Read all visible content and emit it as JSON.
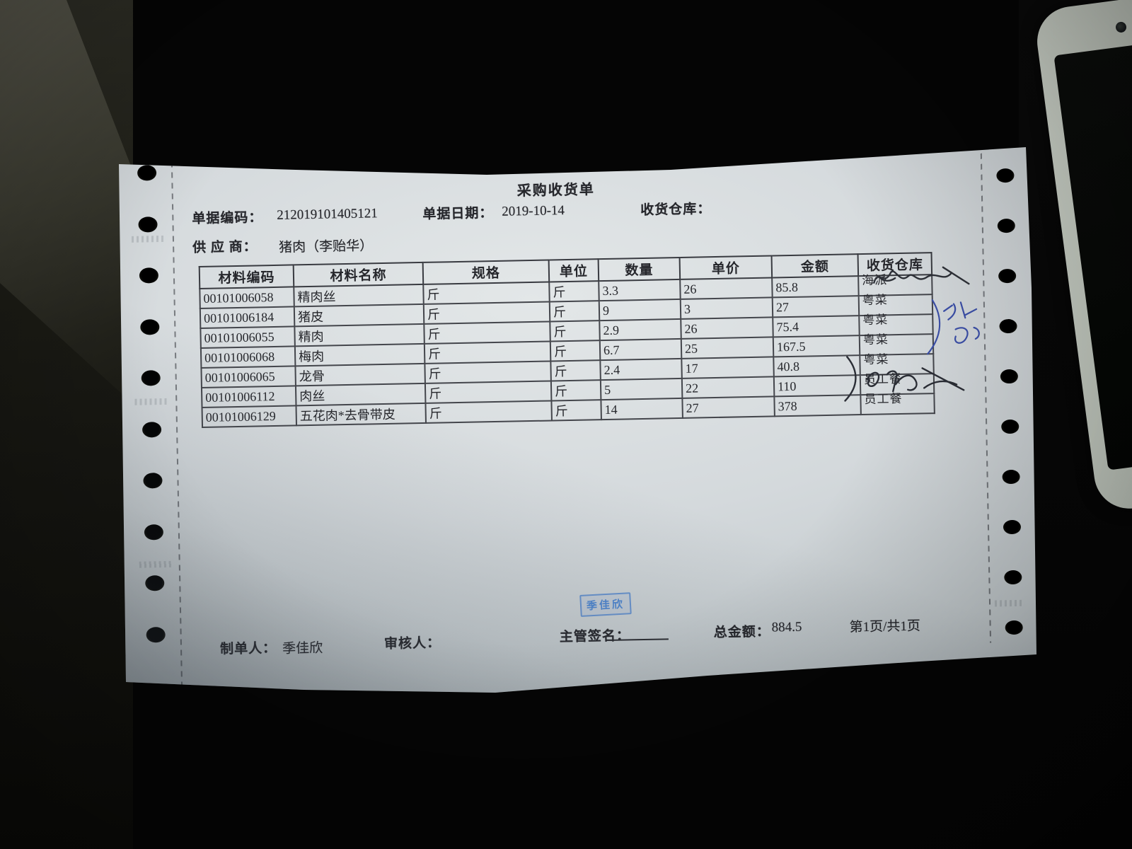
{
  "scene": {
    "background_color": "#050505",
    "paper_color": "#d4d9dc",
    "ink_color": "#26272c",
    "stamp_blue": "#4f86cf",
    "handwriting_blue": "#3c50aa",
    "handwriting_dark": "#2b2e36",
    "phone_body_color": "#c9d0c6",
    "phone_screen_color": "#070907"
  },
  "document": {
    "title": "采购收货单",
    "meta": {
      "code_label": "单据编码：",
      "code_value": "212019101405121",
      "date_label": "单据日期：",
      "date_value": "2019-10-14",
      "warehouse_label": "收货仓库：",
      "supplier_label": "供 应 商：",
      "supplier_value": "猪肉（李贻华）"
    },
    "table": {
      "headers": [
        "材料编码",
        "材料名称",
        "规格",
        "单位",
        "数量",
        "单价",
        "金额",
        "收货仓库"
      ],
      "rows": [
        {
          "code": "00101006058",
          "name": "精肉丝",
          "spec": "斤",
          "unit": "斤",
          "qty": "3.3",
          "price": "26",
          "amount": "85.8",
          "warehouse": "海派"
        },
        {
          "code": "00101006184",
          "name": "猪皮",
          "spec": "斤",
          "unit": "斤",
          "qty": "9",
          "price": "3",
          "amount": "27",
          "warehouse": "粤菜"
        },
        {
          "code": "00101006055",
          "name": "精肉",
          "spec": "斤",
          "unit": "斤",
          "qty": "2.9",
          "price": "26",
          "amount": "75.4",
          "warehouse": "粤菜"
        },
        {
          "code": "00101006068",
          "name": "梅肉",
          "spec": "斤",
          "unit": "斤",
          "qty": "6.7",
          "price": "25",
          "amount": "167.5",
          "warehouse": "粤菜"
        },
        {
          "code": "00101006065",
          "name": "龙骨",
          "spec": "斤",
          "unit": "斤",
          "qty": "2.4",
          "price": "17",
          "amount": "40.8",
          "warehouse": "粤菜"
        },
        {
          "code": "00101006112",
          "name": "肉丝",
          "spec": "斤",
          "unit": "斤",
          "qty": "5",
          "price": "22",
          "amount": "110",
          "warehouse": "员工餐"
        },
        {
          "code": "00101006129",
          "name": "五花肉*去骨带皮",
          "spec": "斤",
          "unit": "斤",
          "qty": "14",
          "price": "27",
          "amount": "378",
          "warehouse": "员工餐"
        }
      ]
    },
    "stamp_text": "季佳欣",
    "footer": {
      "maker_label": "制单人：",
      "maker_value": "季佳欣",
      "auditor_label": "审核人：",
      "supervisor_label": "主管签名：",
      "total_label": "总金额：",
      "total_value": "884.5",
      "page_info": "第1页/共1页"
    }
  }
}
